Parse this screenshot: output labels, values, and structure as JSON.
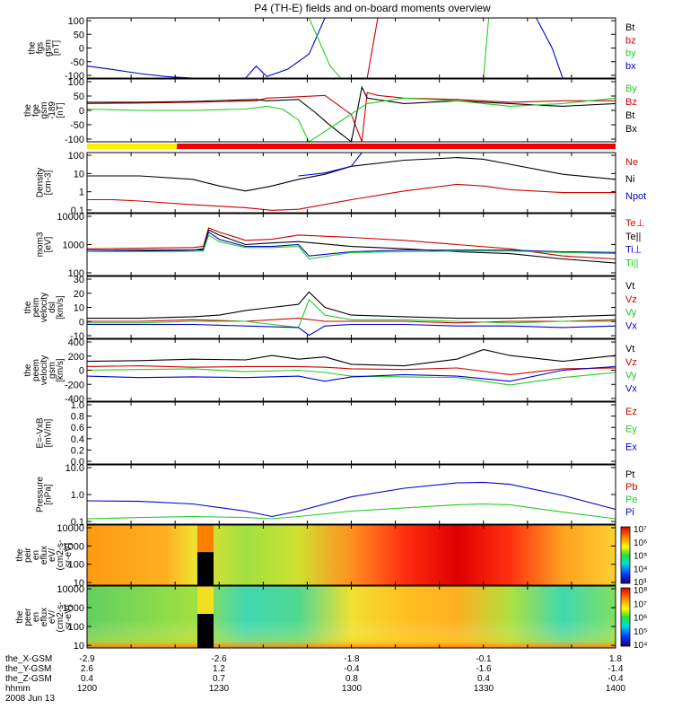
{
  "title": "P4 (TH-E) fields and on-board moments overview",
  "footer": {
    "rows": [
      {
        "label": "the_X-GSM",
        "values": [
          "-2.9",
          "-2.6",
          "-1.8",
          "-0.1",
          "1.8"
        ]
      },
      {
        "label": "the_Y-GSM",
        "values": [
          "2.6",
          "1.2",
          "-0.4",
          "-1.6",
          "-1.4"
        ]
      },
      {
        "label": "the_Z-GSM",
        "values": [
          "0.4",
          "0.7",
          "0.8",
          "0.4",
          "-0.4"
        ]
      },
      {
        "label": "hhmm",
        "values": [
          "1200",
          "1230",
          "1300",
          "1330",
          "1400"
        ]
      }
    ],
    "date": "2008 Jun 13"
  },
  "chart_data": [
    {
      "type": "line",
      "ylabel": [
        "the",
        "fgs",
        "gsm",
        "[nT]"
      ],
      "yticks": [
        "100",
        "50",
        "0",
        "-50",
        "-100"
      ],
      "ylim": [
        -100,
        100
      ],
      "legend": [
        {
          "name": "Bt",
          "color": "#000000"
        },
        {
          "name": "bz",
          "color": "#cc0000"
        },
        {
          "name": "by",
          "color": "#22cc22"
        },
        {
          "name": "bx",
          "color": "#0000cc"
        }
      ],
      "series": [
        {
          "name": "bx",
          "color": "#0000cc",
          "x": [
            0,
            0.05,
            0.1,
            0.15,
            0.2,
            0.25,
            0.3,
            0.32,
            0.34,
            0.38,
            0.42,
            0.45,
            0.85,
            0.88,
            0.9
          ],
          "y": [
            -60,
            -72,
            -85,
            -95,
            -100,
            -100,
            -100,
            -60,
            -95,
            -70,
            -20,
            100,
            100,
            0,
            -100
          ]
        },
        {
          "name": "by",
          "color": "#22cc22",
          "x": [
            0.42,
            0.44,
            0.46,
            0.48,
            0.5,
            0.75,
            0.76
          ],
          "y": [
            100,
            20,
            -60,
            -100,
            -100,
            -100,
            100
          ]
        },
        {
          "name": "bz",
          "color": "#cc0000",
          "x": [
            0.53,
            0.54,
            0.55
          ],
          "y": [
            -100,
            0,
            100
          ]
        }
      ]
    },
    {
      "type": "line",
      "ylabel": [
        "the",
        "fge",
        "gsm",
        "-189",
        "[nT]"
      ],
      "yticks": [
        "100",
        "50",
        "0",
        "-50",
        "-100"
      ],
      "ylim": [
        -120,
        110
      ],
      "legend": [
        {
          "name": "By",
          "color": "#22cc22"
        },
        {
          "name": "Bz",
          "color": "#cc0000"
        },
        {
          "name": "Bt",
          "color": "#000000"
        },
        {
          "name": "Bx",
          "color": "#000000"
        }
      ],
      "series": [
        {
          "name": "Bz",
          "color": "#cc0000",
          "x": [
            0,
            0.1,
            0.2,
            0.32,
            0.34,
            0.4,
            0.45,
            0.5,
            0.52,
            0.53,
            0.55,
            0.6,
            0.7,
            0.8,
            0.9,
            1
          ],
          "y": [
            20,
            22,
            25,
            30,
            40,
            45,
            50,
            -20,
            -120,
            60,
            50,
            40,
            35,
            25,
            30,
            30
          ]
        },
        {
          "name": "Bt",
          "color": "#000000",
          "x": [
            0,
            0.1,
            0.2,
            0.32,
            0.34,
            0.4,
            0.43,
            0.46,
            0.5,
            0.52,
            0.53,
            0.6,
            0.7,
            0.8,
            0.9,
            1
          ],
          "y": [
            25,
            25,
            28,
            35,
            30,
            35,
            -10,
            -60,
            -120,
            80,
            40,
            20,
            30,
            20,
            10,
            20
          ]
        },
        {
          "name": "By",
          "color": "#22cc22",
          "x": [
            0,
            0.1,
            0.2,
            0.3,
            0.34,
            0.37,
            0.4,
            0.42,
            0.53,
            0.6,
            0.7,
            0.8,
            0.9,
            1
          ],
          "y": [
            0,
            -5,
            -5,
            0,
            10,
            0,
            -40,
            -120,
            20,
            40,
            30,
            10,
            20,
            40
          ]
        }
      ],
      "status_bar": [
        {
          "from": 0.0,
          "to": 0.17,
          "color": "#ffee00"
        },
        {
          "from": 0.17,
          "to": 1.0,
          "color": "#ee0000"
        }
      ]
    },
    {
      "type": "line",
      "scale": "log",
      "ylabel": [
        "Density",
        "[cm-3]"
      ],
      "yticks": [
        "100",
        "10",
        "1",
        "0.1"
      ],
      "ylim": [
        0.05,
        200
      ],
      "legend": [
        {
          "name": "Ne",
          "color": "#cc0000"
        },
        {
          "name": "Ni",
          "color": "#000000"
        },
        {
          "name": "Npot",
          "color": "#0000cc"
        }
      ],
      "series": [
        {
          "name": "Ni",
          "color": "#000000",
          "x": [
            0,
            0.05,
            0.1,
            0.2,
            0.25,
            0.3,
            0.35,
            0.4,
            0.45,
            0.5,
            0.6,
            0.7,
            0.75,
            0.8,
            0.9,
            1
          ],
          "y": [
            8,
            8,
            8,
            5,
            2,
            1,
            2,
            5,
            10,
            30,
            70,
            100,
            80,
            40,
            10,
            5
          ]
        },
        {
          "name": "Ne",
          "color": "#cc0000",
          "x": [
            0,
            0.05,
            0.1,
            0.2,
            0.3,
            0.35,
            0.4,
            0.5,
            0.6,
            0.7,
            0.75,
            0.8,
            0.9,
            1
          ],
          "y": [
            0.3,
            0.3,
            0.25,
            0.15,
            0.1,
            0.07,
            0.08,
            0.3,
            1,
            2.5,
            2,
            1.2,
            0.8,
            0.8
          ]
        },
        {
          "name": "Npot",
          "color": "#0000cc",
          "x": [
            0.4,
            0.45,
            0.5,
            0.52
          ],
          "y": [
            8,
            12,
            30,
            200
          ]
        }
      ]
    },
    {
      "type": "line",
      "scale": "log",
      "ylabel": [
        "mom3",
        "[eV]"
      ],
      "yticks": [
        "10000",
        "1000",
        "100"
      ],
      "ylim": [
        30,
        12000
      ],
      "legend": [
        {
          "name": "Te⊥",
          "color": "#cc0000"
        },
        {
          "name": "Te||",
          "color": "#000000"
        },
        {
          "name": "Ti⊥",
          "color": "#0000cc"
        },
        {
          "name": "Ti||",
          "color": "#22cc22"
        }
      ],
      "series": [
        {
          "name": "Te⊥",
          "color": "#cc0000",
          "x": [
            0,
            0.1,
            0.2,
            0.22,
            0.23,
            0.25,
            0.3,
            0.35,
            0.4,
            0.5,
            0.6,
            0.7,
            0.8,
            0.9,
            1
          ],
          "y": [
            400,
            420,
            450,
            500,
            3000,
            2000,
            900,
            1000,
            1500,
            1200,
            900,
            600,
            400,
            200,
            150
          ]
        },
        {
          "name": "Te||",
          "color": "#000000",
          "x": [
            0,
            0.1,
            0.2,
            0.22,
            0.23,
            0.25,
            0.3,
            0.35,
            0.4,
            0.5,
            0.6,
            0.7,
            0.8,
            0.9,
            1
          ],
          "y": [
            300,
            320,
            350,
            400,
            2500,
            1500,
            600,
            700,
            800,
            500,
            400,
            300,
            250,
            150,
            100
          ]
        },
        {
          "name": "Ti⊥",
          "color": "#0000cc",
          "x": [
            0,
            0.2,
            0.22,
            0.23,
            0.25,
            0.3,
            0.35,
            0.4,
            0.42,
            0.5,
            0.6,
            0.7,
            0.8,
            0.9,
            1
          ],
          "y": [
            350,
            360,
            360,
            2000,
            1000,
            500,
            500,
            600,
            200,
            300,
            350,
            350,
            350,
            300,
            280
          ]
        },
        {
          "name": "Ti||",
          "color": "#22cc22",
          "x": [
            0,
            0.2,
            0.22,
            0.23,
            0.25,
            0.3,
            0.35,
            0.4,
            0.42,
            0.5,
            0.6,
            0.7,
            0.8,
            0.9,
            1
          ],
          "y": [
            300,
            310,
            320,
            1500,
            800,
            450,
            450,
            500,
            150,
            280,
            300,
            320,
            320,
            280,
            250
          ]
        }
      ]
    },
    {
      "type": "line",
      "ylabel": [
        "the",
        "peim",
        "velocity",
        "dsl",
        "[km/s]"
      ],
      "yticks": [
        "30",
        "20",
        "10",
        "0",
        "-10"
      ],
      "ylim": [
        -10,
        30
      ],
      "legend": [
        {
          "name": "Vt",
          "color": "#000000"
        },
        {
          "name": "Vz",
          "color": "#cc0000"
        },
        {
          "name": "Vy",
          "color": "#22cc22"
        },
        {
          "name": "Vx",
          "color": "#0000cc"
        }
      ],
      "series": [
        {
          "name": "Vt",
          "color": "#000000",
          "x": [
            0,
            0.1,
            0.2,
            0.25,
            0.3,
            0.35,
            0.4,
            0.42,
            0.45,
            0.5,
            0.6,
            0.7,
            0.8,
            0.9,
            1
          ],
          "y": [
            3,
            3,
            4,
            5,
            8,
            10,
            12,
            20,
            10,
            5,
            4,
            3,
            3,
            4,
            5
          ]
        },
        {
          "name": "Vz",
          "color": "#cc0000",
          "x": [
            0,
            0.1,
            0.2,
            0.3,
            0.4,
            0.45,
            0.5,
            0.6,
            0.7,
            0.8,
            0.9,
            1
          ],
          "y": [
            1,
            1,
            2,
            1,
            3,
            1,
            1,
            1,
            0,
            1,
            1,
            2
          ]
        },
        {
          "name": "Vy",
          "color": "#22cc22",
          "x": [
            0,
            0.1,
            0.2,
            0.3,
            0.4,
            0.42,
            0.45,
            0.5,
            0.6,
            0.7,
            0.8,
            0.9,
            1
          ],
          "y": [
            0,
            0,
            1,
            1,
            -3,
            15,
            5,
            2,
            2,
            1,
            0,
            1,
            1
          ]
        },
        {
          "name": "Vx",
          "color": "#0000cc",
          "x": [
            0,
            0.1,
            0.2,
            0.3,
            0.4,
            0.42,
            0.45,
            0.5,
            0.6,
            0.7,
            0.8,
            0.9,
            1
          ],
          "y": [
            -1,
            -1,
            -1,
            -2,
            -3,
            -8,
            -2,
            -1,
            -1,
            -2,
            -2,
            -3,
            -2
          ]
        }
      ]
    },
    {
      "type": "line",
      "ylabel": [
        "the",
        "peem",
        "velocity",
        "gsm",
        "[km/s]"
      ],
      "yticks": [
        "400",
        "200",
        "0",
        "-200",
        "-400"
      ],
      "ylim": [
        -420,
        420
      ],
      "legend": [
        {
          "name": "Vt",
          "color": "#000000"
        },
        {
          "name": "Vz",
          "color": "#cc0000"
        },
        {
          "name": "Vy",
          "color": "#22cc22"
        },
        {
          "name": "Vx",
          "color": "#0000cc"
        }
      ],
      "series": [
        {
          "name": "Vt",
          "color": "#000000",
          "x": [
            0,
            0.1,
            0.2,
            0.3,
            0.35,
            0.4,
            0.45,
            0.5,
            0.6,
            0.7,
            0.75,
            0.8,
            0.9,
            1
          ],
          "y": [
            120,
            130,
            150,
            140,
            200,
            150,
            180,
            80,
            60,
            150,
            280,
            200,
            120,
            200
          ]
        },
        {
          "name": "Vz",
          "color": "#cc0000",
          "x": [
            0,
            0.1,
            0.2,
            0.3,
            0.4,
            0.45,
            0.5,
            0.6,
            0.7,
            0.8,
            0.9,
            1
          ],
          "y": [
            50,
            60,
            40,
            50,
            50,
            40,
            20,
            10,
            30,
            -60,
            20,
            30
          ]
        },
        {
          "name": "Vy",
          "color": "#22cc22",
          "x": [
            0,
            0.1,
            0.2,
            0.3,
            0.4,
            0.45,
            0.5,
            0.6,
            0.7,
            0.8,
            0.9,
            1
          ],
          "y": [
            0,
            10,
            20,
            -20,
            0,
            -30,
            -80,
            -90,
            -100,
            -200,
            -100,
            -30
          ]
        },
        {
          "name": "Vx",
          "color": "#0000cc",
          "x": [
            0,
            0.1,
            0.2,
            0.3,
            0.4,
            0.45,
            0.5,
            0.6,
            0.7,
            0.8,
            0.9,
            1
          ],
          "y": [
            -80,
            -100,
            -90,
            -100,
            -80,
            -150,
            -90,
            -60,
            -80,
            -150,
            0,
            50
          ]
        }
      ]
    },
    {
      "type": "line",
      "ylabel": [
        "E=-VxB",
        "[mV/m]"
      ],
      "yticks": [
        "1.0",
        "0.8",
        "0.6",
        "0.4",
        "0.2",
        "0.0"
      ],
      "ylim": [
        0,
        1
      ],
      "legend": [
        {
          "name": "Ez",
          "color": "#cc0000"
        },
        {
          "name": "Ey",
          "color": "#22cc22"
        },
        {
          "name": "Ex",
          "color": "#0000cc"
        }
      ],
      "series": []
    },
    {
      "type": "line",
      "scale": "log",
      "ylabel": [
        "Pressure",
        "[nPa]"
      ],
      "yticks": [
        "10.0",
        "1.0",
        "0.1"
      ],
      "ylim": [
        0.015,
        30
      ],
      "legend": [
        {
          "name": "Pt",
          "color": "#000000"
        },
        {
          "name": "Pb",
          "color": "#cc0000"
        },
        {
          "name": "Pe",
          "color": "#22cc22"
        },
        {
          "name": "Pi",
          "color": "#0000cc"
        }
      ],
      "series": [
        {
          "name": "Pi",
          "color": "#0000cc",
          "x": [
            0,
            0.1,
            0.2,
            0.3,
            0.35,
            0.4,
            0.5,
            0.6,
            0.7,
            0.75,
            0.8,
            0.9,
            1
          ],
          "y": [
            0.3,
            0.28,
            0.2,
            0.08,
            0.04,
            0.08,
            0.5,
            1.5,
            3,
            3.2,
            2.5,
            0.6,
            0.1
          ]
        },
        {
          "name": "Pe",
          "color": "#22cc22",
          "x": [
            0,
            0.1,
            0.2,
            0.3,
            0.35,
            0.4,
            0.5,
            0.6,
            0.7,
            0.75,
            0.8,
            0.9,
            1
          ],
          "y": [
            0.03,
            0.035,
            0.04,
            0.035,
            0.03,
            0.04,
            0.08,
            0.12,
            0.18,
            0.2,
            0.18,
            0.07,
            0.03
          ]
        }
      ]
    },
    {
      "type": "heatmap",
      "ylabel": [
        "the",
        "peir",
        "en",
        "eflux",
        "eV/",
        "(cm2-s-",
        "sr-eV)"
      ],
      "yticks": [
        "10000",
        "1000",
        "100",
        "10"
      ],
      "colorbar_ticks": [
        "10⁷",
        "10⁶",
        "10⁵",
        "10⁴",
        "10³"
      ]
    },
    {
      "type": "heatmap",
      "ylabel": [
        "the",
        "peer",
        "en",
        "eflux",
        "eV/",
        "(cm2-s-",
        "sr-eV)"
      ],
      "yticks": [
        "10000",
        "1000",
        "100",
        "10"
      ],
      "colorbar_ticks": [
        "10⁸",
        "10⁷",
        "10⁶",
        "10⁵",
        "10⁴"
      ]
    }
  ]
}
